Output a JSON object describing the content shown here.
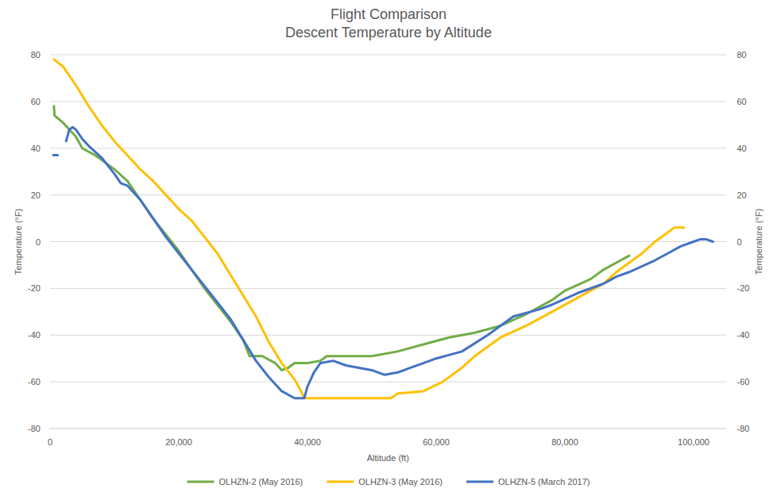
{
  "chart_data": {
    "type": "line",
    "title": "Flight Comparison",
    "subtitle": "Descent Temperature by Altitude",
    "xlabel": "Altitude (ft)",
    "ylabel": "Temperature (°F)",
    "y2label": "Temperature (°F)",
    "xlim": [
      0,
      105000
    ],
    "xticks": [
      0,
      {
        "value": 20000,
        "label": "20,000"
      },
      {
        "value": 40000,
        "label": "40,000"
      },
      {
        "value": 60000,
        "label": "60,000"
      },
      {
        "value": 80000,
        "label": "80,000"
      },
      {
        "value": 100000,
        "label": "100,000"
      }
    ],
    "ylim": [
      -80,
      80
    ],
    "yticks": [
      -80,
      -60,
      -40,
      -20,
      0,
      20,
      40,
      60,
      80
    ],
    "y2lim": [
      -80,
      80
    ],
    "y2ticks": [
      -80,
      -60,
      -40,
      -20,
      0,
      20,
      40,
      60,
      80
    ],
    "grid": "y",
    "legend": "bottom",
    "series": [
      {
        "name": "OLHZN-2 (May 2016)",
        "color": "#70ad47",
        "x": [
          600,
          700,
          2000,
          3000,
          4000,
          5000,
          7000,
          9000,
          10000,
          12000,
          14000,
          16000,
          18000,
          20000,
          22000,
          24000,
          26000,
          28000,
          30000,
          31000,
          33000,
          35000,
          36000,
          37000,
          38000,
          40000,
          42000,
          43000,
          50000,
          54000,
          58000,
          62000,
          66000,
          70000,
          74000,
          78000,
          80000,
          84000,
          86000,
          88000,
          90000
        ],
        "values": [
          58,
          54,
          51,
          48,
          45,
          40,
          37,
          33,
          31,
          26,
          18,
          10,
          3,
          -4,
          -12,
          -20,
          -27,
          -34,
          -42,
          -49,
          -49,
          -52,
          -55,
          -54,
          -52,
          -52,
          -51,
          -49,
          -49,
          -47,
          -44,
          -41,
          -39,
          -36,
          -31,
          -25,
          -21,
          -16,
          -12,
          -9,
          -6
        ]
      },
      {
        "name": "OLHZN-3 (May 2016)",
        "color": "#ffc000",
        "x": [
          600,
          2000,
          4000,
          6000,
          8000,
          10000,
          12000,
          14000,
          16000,
          18000,
          20000,
          22000,
          24000,
          26000,
          28000,
          30000,
          32000,
          34000,
          36000,
          38000,
          39000,
          39500,
          45000,
          53000,
          54000,
          58000,
          61000,
          64000,
          66000,
          68000,
          70000,
          74000,
          78000,
          82000,
          86000,
          88000,
          90000,
          92000,
          94000,
          96000,
          97000,
          98500
        ],
        "values": [
          78,
          75,
          67,
          58,
          50,
          43,
          37,
          31,
          26,
          20,
          14,
          9,
          2,
          -5,
          -14,
          -23,
          -32,
          -43,
          -52,
          -59,
          -64,
          -67,
          -67,
          -67,
          -65,
          -64,
          -60,
          -54,
          -49,
          -45,
          -41,
          -36,
          -30,
          -24,
          -18,
          -13,
          -9,
          -5,
          0,
          4,
          6,
          6
        ]
      },
      {
        "name": "OLHZN-5 (March 2017)",
        "color": "#4472c4",
        "x": [
          500,
          1200,
          1800,
          2500,
          3000,
          3500,
          4000,
          5000,
          6000,
          8000,
          10000,
          11000,
          12000,
          14000,
          16000,
          18000,
          20000,
          22000,
          24000,
          26000,
          28000,
          30000,
          32000,
          34000,
          36000,
          38000,
          39500,
          40000,
          41000,
          42000,
          44000,
          46000,
          48000,
          50000,
          52000,
          54000,
          56000,
          58000,
          60000,
          64000,
          68000,
          70000,
          72000,
          76000,
          78000,
          82000,
          86000,
          88000,
          90000,
          94000,
          96000,
          98000,
          100000,
          101000,
          102000,
          103000
        ],
        "values": [
          37,
          37,
          null,
          43,
          48,
          49,
          48,
          44,
          41,
          36,
          29,
          25,
          24,
          18,
          10,
          2,
          -5,
          -12,
          -19,
          -26,
          -33,
          -42,
          -51,
          -58,
          -64,
          -67,
          -67,
          -62,
          -56,
          -52,
          -51,
          -53,
          -54,
          -55,
          -57,
          -56,
          -54,
          -52,
          -50,
          -47,
          -40,
          -36,
          -32,
          -29,
          -27,
          -22,
          -18,
          -15,
          -13,
          -8,
          -5,
          -2,
          0,
          1,
          1,
          0
        ]
      }
    ]
  }
}
